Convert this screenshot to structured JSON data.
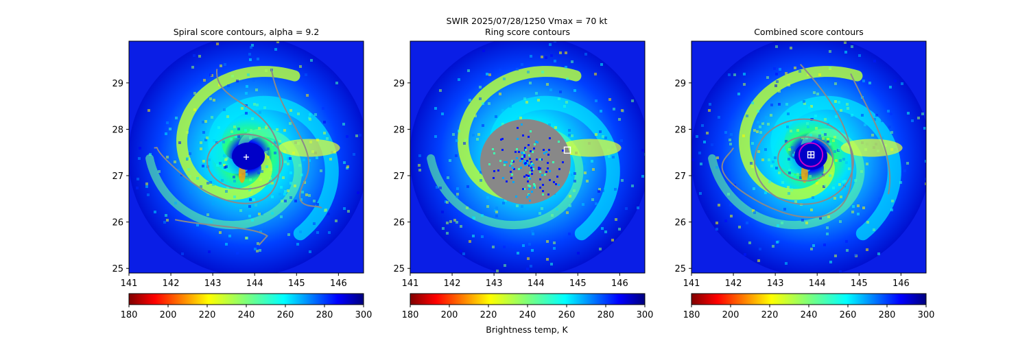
{
  "suptitle_line1": "SWIR  2025/07/28/1250    Vmax = 70 kt",
  "colorbar_label": "Brightness temp, K",
  "chart_data": [
    {
      "type": "heatmap",
      "title": "Spiral score contours, alpha =  9.2",
      "x_ticks": [
        "141",
        "142",
        "143",
        "144",
        "145",
        "146"
      ],
      "y_ticks": [
        "25",
        "26",
        "27",
        "28",
        "29"
      ],
      "xlim": [
        141,
        146.6
      ],
      "ylim": [
        24.9,
        29.9
      ],
      "overlay": "spiral score contours (gray)",
      "center_marker": {
        "symbol": "plus",
        "lon": 143.8,
        "lat": 27.4,
        "color": "#ffffff"
      }
    },
    {
      "type": "heatmap",
      "title": "Ring score contours",
      "x_ticks": [
        "141",
        "142",
        "143",
        "144",
        "145",
        "146"
      ],
      "y_ticks": [
        "25",
        "26",
        "27",
        "28",
        "29"
      ],
      "xlim": [
        141,
        146.6
      ],
      "ylim": [
        24.9,
        29.9
      ],
      "overlay": "ring score contours (gray, dense)",
      "center_marker": {
        "symbol": "square",
        "lon": 144.75,
        "lat": 27.55,
        "color": "#ffffff"
      }
    },
    {
      "type": "heatmap",
      "title": "Combined score contours",
      "x_ticks": [
        "141",
        "142",
        "143",
        "144",
        "145",
        "146"
      ],
      "y_ticks": [
        "25",
        "26",
        "27",
        "28",
        "29"
      ],
      "xlim": [
        141,
        146.6
      ],
      "ylim": [
        24.9,
        29.9
      ],
      "overlay": "combined score contours (gray)",
      "center_marker": {
        "symbol": "square-plus",
        "lon": 143.85,
        "lat": 27.45,
        "color": "#ffffff"
      },
      "eye_circle": {
        "lon": 143.85,
        "lat": 27.45,
        "radius_deg": 0.28,
        "color": "#cc00cc"
      }
    }
  ],
  "colorbar": {
    "cmap": "jet_r",
    "range": [
      180,
      300
    ],
    "ticks": [
      "180",
      "200",
      "220",
      "240",
      "260",
      "280",
      "300"
    ]
  }
}
